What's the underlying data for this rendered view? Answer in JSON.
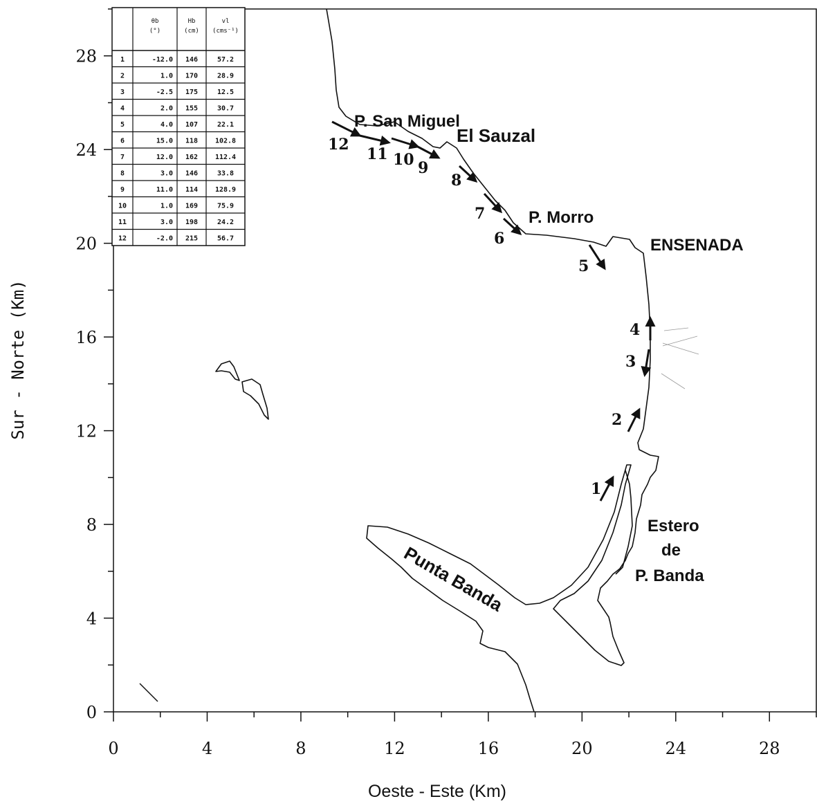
{
  "axes": {
    "xlabel": "Oeste - Este (Km)",
    "ylabel": "Sur - Norte (Km)",
    "x_ticks": [
      "0",
      "4",
      "8",
      "12",
      "16",
      "20",
      "24",
      "28"
    ],
    "y_ticks": [
      "0",
      "4",
      "8",
      "12",
      "16",
      "20",
      "24",
      "28"
    ],
    "xlim": [
      0,
      30
    ],
    "ylim": [
      0,
      30
    ]
  },
  "places": {
    "san_miguel": "P. San Miguel",
    "el_sauzal": "El Sauzal",
    "morro": "P. Morro",
    "ensenada": "ENSENADA",
    "estero_1": "Estero",
    "estero_2": "de",
    "estero_3": "P. Banda",
    "punta_banda": "Punta Banda"
  },
  "table": {
    "headers": [
      "θb",
      "(°)",
      "Hb",
      "(cm)",
      "vl",
      "(cms⁻¹)"
    ],
    "rows": [
      [
        "1",
        "-12.0",
        "146",
        "57.2"
      ],
      [
        "2",
        "1.0",
        "170",
        "28.9"
      ],
      [
        "3",
        "-2.5",
        "175",
        "12.5"
      ],
      [
        "4",
        "2.0",
        "155",
        "30.7"
      ],
      [
        "5",
        "4.0",
        "107",
        "22.1"
      ],
      [
        "6",
        "15.0",
        "118",
        "102.8"
      ],
      [
        "7",
        "12.0",
        "162",
        "112.4"
      ],
      [
        "8",
        "3.0",
        "146",
        "33.8"
      ],
      [
        "9",
        "11.0",
        "114",
        "128.9"
      ],
      [
        "10",
        "1.0",
        "169",
        "75.9"
      ],
      [
        "11",
        "3.0",
        "198",
        "24.2"
      ],
      [
        "12",
        "-2.0",
        "215",
        "56.7"
      ]
    ]
  },
  "stations": [
    {
      "label": "1"
    },
    {
      "label": "2"
    },
    {
      "label": "3"
    },
    {
      "label": "4"
    },
    {
      "label": "5"
    },
    {
      "label": "6"
    },
    {
      "label": "7"
    },
    {
      "label": "8"
    },
    {
      "label": "9"
    },
    {
      "label": "10"
    },
    {
      "label": "11"
    },
    {
      "label": "12"
    }
  ]
}
